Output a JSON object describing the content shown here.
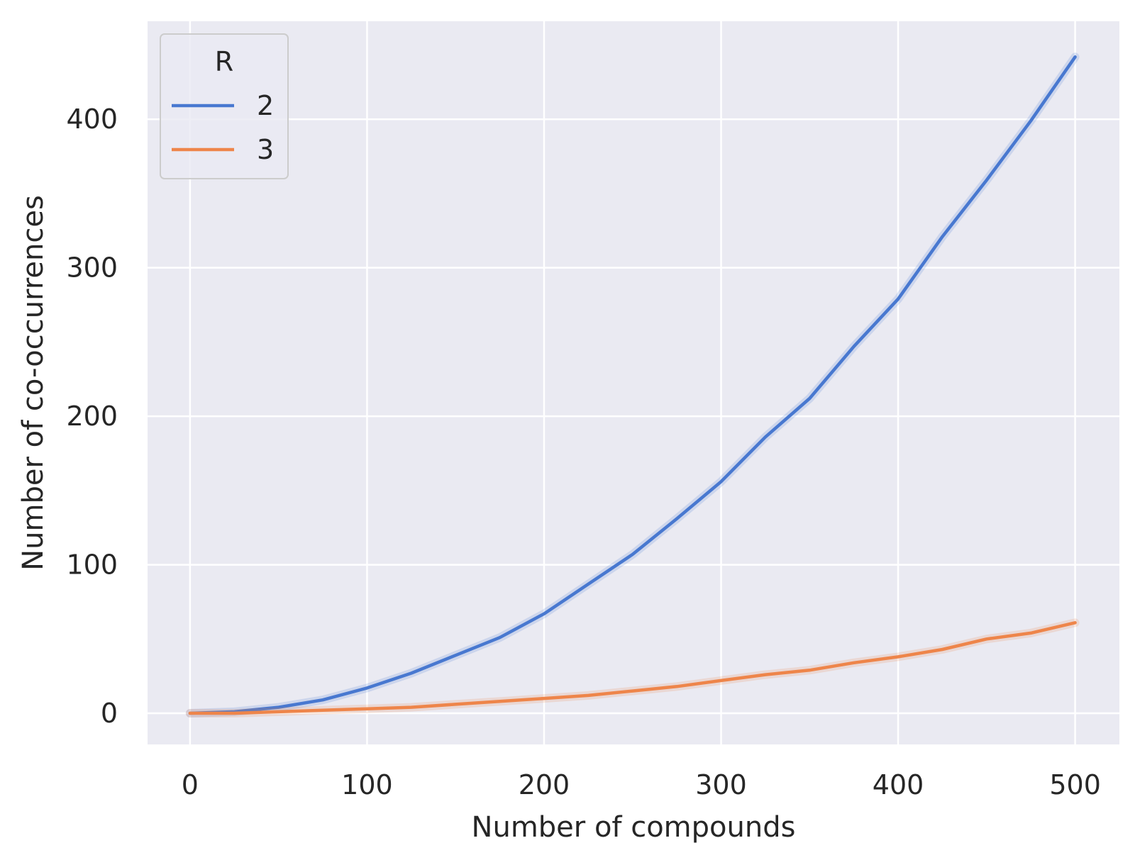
{
  "chart_data": {
    "type": "line",
    "xlabel": "Number of compounds",
    "ylabel": "Number of co-occurrences",
    "xlim": [
      -24,
      525
    ],
    "ylim": [
      -21,
      466
    ],
    "xticks": [
      0,
      100,
      200,
      300,
      400,
      500
    ],
    "yticks": [
      0,
      100,
      200,
      300,
      400
    ],
    "grid": true,
    "legend": {
      "title": "R",
      "position": "top-left"
    },
    "background_color": "#eaeaf2",
    "grid_color": "#ffffff",
    "x": [
      0,
      25,
      50,
      75,
      100,
      125,
      150,
      175,
      200,
      225,
      250,
      275,
      300,
      325,
      350,
      375,
      400,
      425,
      450,
      475,
      500
    ],
    "series": [
      {
        "name": "2",
        "color": "#4878d0",
        "values": [
          0,
          1,
          4,
          9,
          17,
          27,
          39,
          51,
          67,
          87,
          107,
          131,
          156,
          186,
          212,
          247,
          279,
          321,
          359,
          399,
          442
        ]
      },
      {
        "name": "3",
        "color": "#ee854a",
        "values": [
          0,
          0,
          1,
          2,
          3,
          4,
          6,
          8,
          10,
          12,
          15,
          18,
          22,
          26,
          29,
          34,
          38,
          43,
          50,
          54,
          61
        ]
      }
    ]
  }
}
